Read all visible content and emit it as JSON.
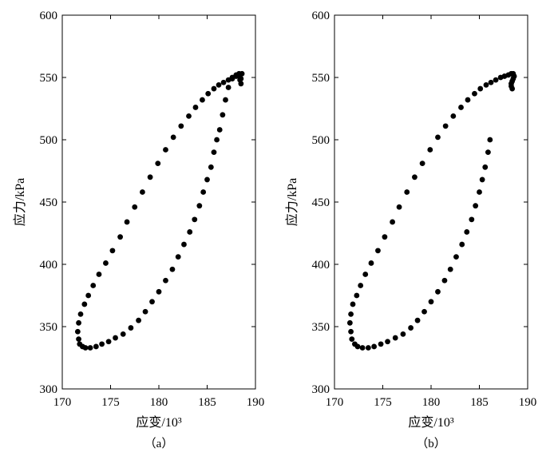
{
  "chart_data": [
    {
      "type": "scatter",
      "panel_label": "（a）",
      "xlabel": "应变/10³",
      "ylabel": "应力/kPa",
      "xlim": [
        170,
        190
      ],
      "ylim": [
        300,
        600
      ],
      "xticks": [
        "170",
        "175",
        "180",
        "185",
        "190"
      ],
      "yticks": [
        "300",
        "350",
        "400",
        "450",
        "500",
        "550",
        "600"
      ],
      "grid": false,
      "marker_color": "#000000",
      "x": [
        188.5,
        188.4,
        188.6,
        188.3,
        188.0,
        187.6,
        187.2,
        186.9,
        186.6,
        186.3,
        186.0,
        185.7,
        185.4,
        185.0,
        184.6,
        184.2,
        183.7,
        183.2,
        182.6,
        182.0,
        181.4,
        180.7,
        180.0,
        179.3,
        178.6,
        177.9,
        177.1,
        176.3,
        175.5,
        174.8,
        174.1,
        173.5,
        172.9,
        172.4,
        172.1,
        171.8,
        171.7,
        171.6,
        171.7,
        171.9,
        172.3,
        172.7,
        173.2,
        173.8,
        174.5,
        175.2,
        176.0,
        176.7,
        177.5,
        178.3,
        179.1,
        179.9,
        180.7,
        181.5,
        182.3,
        183.1,
        183.8,
        184.5,
        185.1,
        185.7,
        186.2,
        186.7,
        187.2,
        187.6,
        188.0,
        188.3,
        188.5
      ],
      "y": [
        545,
        548,
        553,
        553,
        552,
        549,
        542,
        532,
        520,
        508,
        500,
        490,
        478,
        468,
        458,
        447,
        436,
        426,
        416,
        406,
        396,
        387,
        378,
        370,
        362,
        355,
        349,
        344,
        341,
        338,
        336,
        334,
        333,
        333,
        334,
        336,
        340,
        346,
        353,
        360,
        368,
        375,
        383,
        392,
        401,
        411,
        422,
        434,
        446,
        458,
        470,
        481,
        492,
        502,
        511,
        519,
        526,
        532,
        537,
        541,
        544,
        546,
        548,
        550,
        551,
        551,
        549
      ]
    },
    {
      "type": "scatter",
      "panel_label": "（b）",
      "xlabel": "应变/10³",
      "ylabel": "应力/kPa",
      "xlim": [
        170,
        190
      ],
      "ylim": [
        300,
        600
      ],
      "xticks": [
        "170",
        "175",
        "180",
        "185",
        "190"
      ],
      "yticks": [
        "300",
        "350",
        "400",
        "450",
        "500",
        "550",
        "600"
      ],
      "grid": false,
      "marker_color": "#000000",
      "x": [
        186.1,
        185.9,
        185.6,
        185.3,
        185.0,
        184.6,
        184.2,
        183.7,
        183.2,
        182.6,
        182.0,
        181.4,
        180.7,
        180.0,
        179.3,
        178.6,
        177.9,
        177.1,
        176.3,
        175.5,
        174.8,
        174.1,
        173.5,
        172.9,
        172.4,
        172.1,
        171.8,
        171.7,
        171.6,
        171.7,
        171.9,
        172.3,
        172.7,
        173.2,
        173.8,
        174.5,
        175.2,
        176.0,
        176.7,
        177.5,
        178.3,
        179.1,
        179.9,
        180.7,
        181.5,
        182.3,
        183.1,
        183.8,
        184.5,
        185.1,
        185.7,
        186.2,
        186.7,
        187.2,
        187.6,
        188.0,
        188.3,
        188.5,
        188.6,
        188.5,
        188.4,
        188.3,
        188.3,
        188.4
      ],
      "y": [
        500,
        490,
        478,
        468,
        458,
        447,
        436,
        426,
        416,
        406,
        396,
        387,
        378,
        370,
        362,
        355,
        349,
        344,
        341,
        338,
        336,
        334,
        333,
        333,
        334,
        336,
        340,
        346,
        353,
        360,
        368,
        375,
        383,
        392,
        401,
        411,
        422,
        434,
        446,
        458,
        470,
        481,
        492,
        502,
        511,
        519,
        526,
        532,
        537,
        541,
        544,
        546,
        548,
        550,
        551,
        552,
        553,
        553,
        551,
        549,
        547,
        545,
        543,
        541
      ]
    }
  ]
}
